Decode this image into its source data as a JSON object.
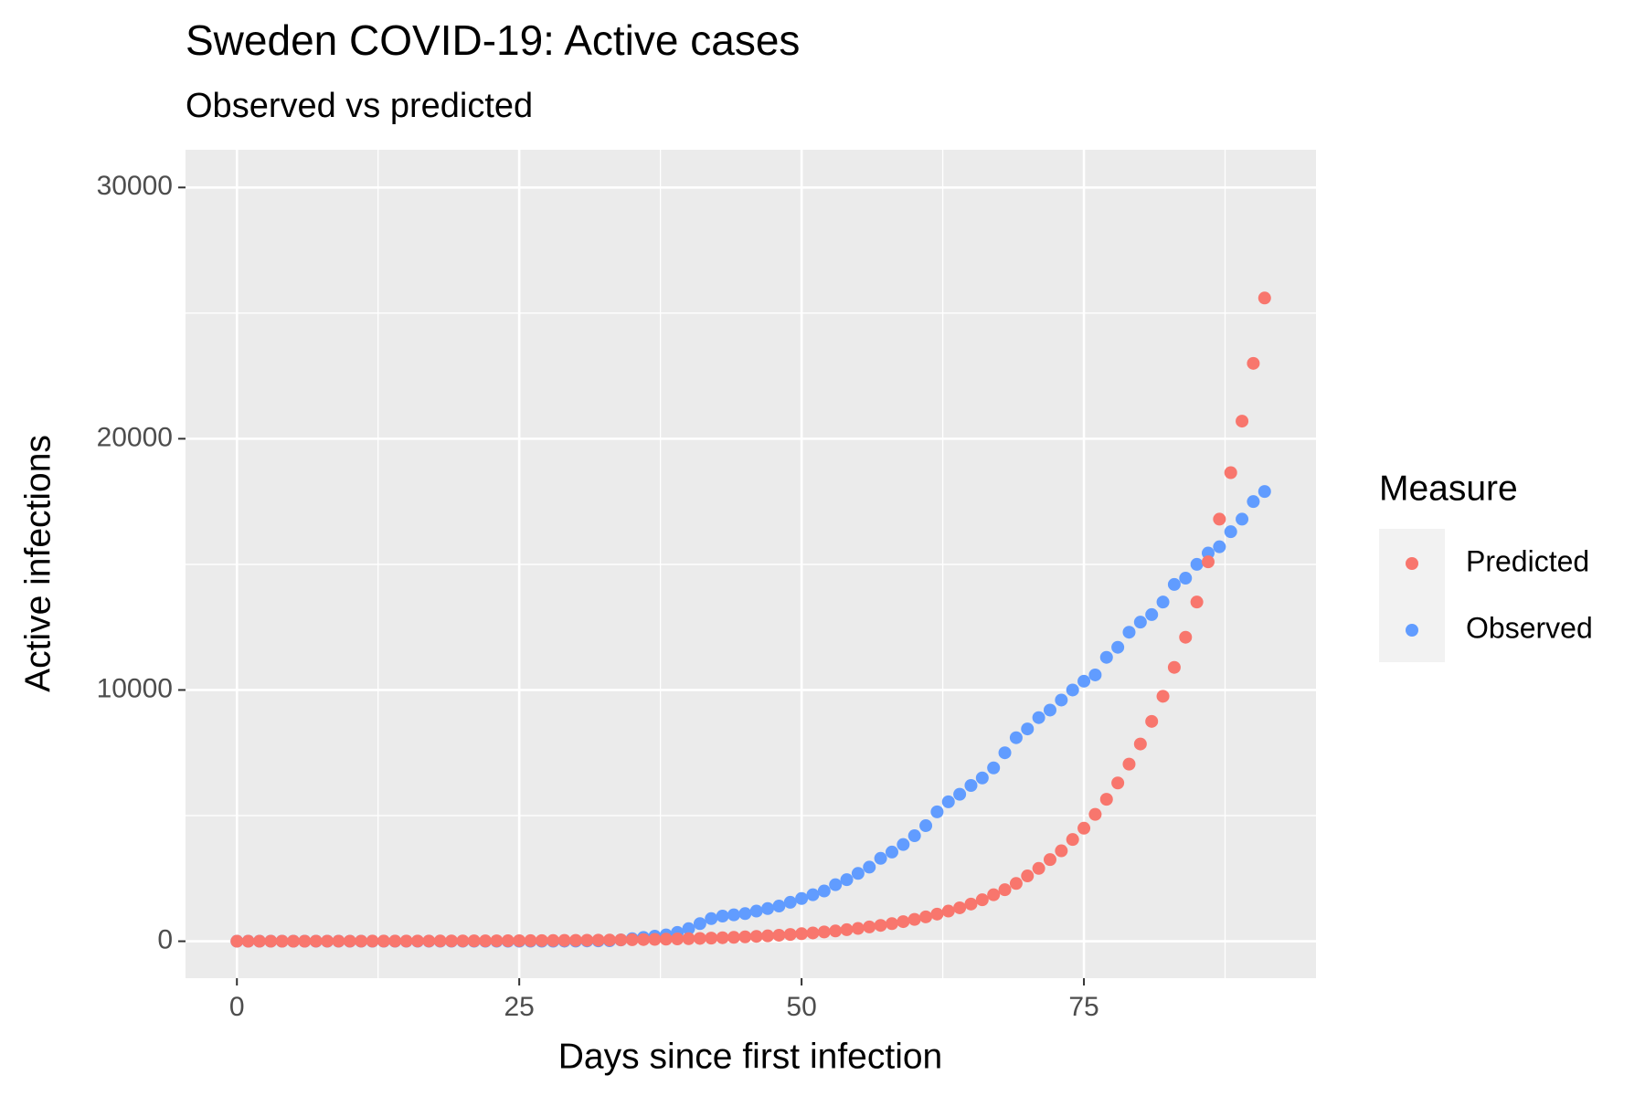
{
  "chart_data": {
    "type": "scatter",
    "title": "Sweden COVID-19: Active cases",
    "subtitle": "Observed vs predicted",
    "x_label": "Days since first infection",
    "y_label": "Active infections",
    "legend_title": "Measure",
    "legend_position": "right",
    "grid": true,
    "xlim": [
      -4.55,
      95.55
    ],
    "ylim": [
      -1470,
      31500
    ],
    "xticks": [
      0,
      25,
      50,
      75
    ],
    "yticks": [
      0,
      10000,
      20000,
      30000
    ],
    "x_minor_grid": [
      12.5,
      37.5,
      62.5,
      87.5
    ],
    "y_minor_grid": [
      5000,
      15000,
      25000
    ],
    "x": [
      0,
      1,
      2,
      3,
      4,
      5,
      6,
      7,
      8,
      9,
      10,
      11,
      12,
      13,
      14,
      15,
      16,
      17,
      18,
      19,
      20,
      21,
      22,
      23,
      24,
      25,
      26,
      27,
      28,
      29,
      30,
      31,
      32,
      33,
      34,
      35,
      36,
      37,
      38,
      39,
      40,
      41,
      42,
      43,
      44,
      45,
      46,
      47,
      48,
      49,
      50,
      51,
      52,
      53,
      54,
      55,
      56,
      57,
      58,
      59,
      60,
      61,
      62,
      63,
      64,
      65,
      66,
      67,
      68,
      69,
      70,
      71,
      72,
      73,
      74,
      75,
      76,
      77,
      78,
      79,
      80,
      81,
      82,
      83,
      84,
      85,
      86,
      87,
      88,
      89,
      90,
      91
    ],
    "series": [
      {
        "name": "Predicted",
        "color": "#F8766D",
        "values": [
          1,
          1,
          1,
          2,
          2,
          2,
          2,
          3,
          3,
          3,
          4,
          4,
          5,
          6,
          6,
          7,
          8,
          9,
          10,
          11,
          12,
          14,
          15,
          17,
          19,
          21,
          23,
          26,
          29,
          32,
          35,
          39,
          44,
          49,
          54,
          60,
          67,
          74,
          83,
          92,
          102,
          113,
          125,
          140,
          155,
          175,
          195,
          215,
          240,
          270,
          300,
          330,
          370,
          410,
          460,
          510,
          570,
          630,
          700,
          780,
          870,
          970,
          1080,
          1200,
          1330,
          1480,
          1650,
          1850,
          2050,
          2300,
          2600,
          2900,
          3250,
          3600,
          4050,
          4500,
          5050,
          5650,
          6300,
          7050,
          7850,
          8750,
          9750,
          10900,
          12100,
          13500,
          15100,
          16800,
          18650,
          20700,
          23000,
          25600
        ]
      },
      {
        "name": "Observed",
        "color": "#619CFF",
        "values": [
          1,
          1,
          1,
          1,
          1,
          1,
          1,
          1,
          1,
          1,
          1,
          1,
          1,
          1,
          1,
          1,
          1,
          1,
          1,
          1,
          1,
          1,
          1,
          1,
          1,
          1,
          1,
          1,
          2,
          4,
          7,
          12,
          15,
          20,
          50,
          100,
          150,
          200,
          250,
          350,
          500,
          700,
          900,
          1000,
          1050,
          1100,
          1200,
          1300,
          1400,
          1550,
          1700,
          1850,
          2000,
          2250,
          2450,
          2700,
          2950,
          3300,
          3550,
          3850,
          4200,
          4600,
          5150,
          5550,
          5850,
          6200,
          6500,
          6900,
          7500,
          8100,
          8450,
          8900,
          9200,
          9600,
          10000,
          10350,
          10600,
          11300,
          11700,
          12300,
          12700,
          13000,
          13500,
          14200,
          14450,
          15000,
          15450,
          15700,
          16300,
          16800,
          17500,
          17900
        ]
      }
    ]
  }
}
